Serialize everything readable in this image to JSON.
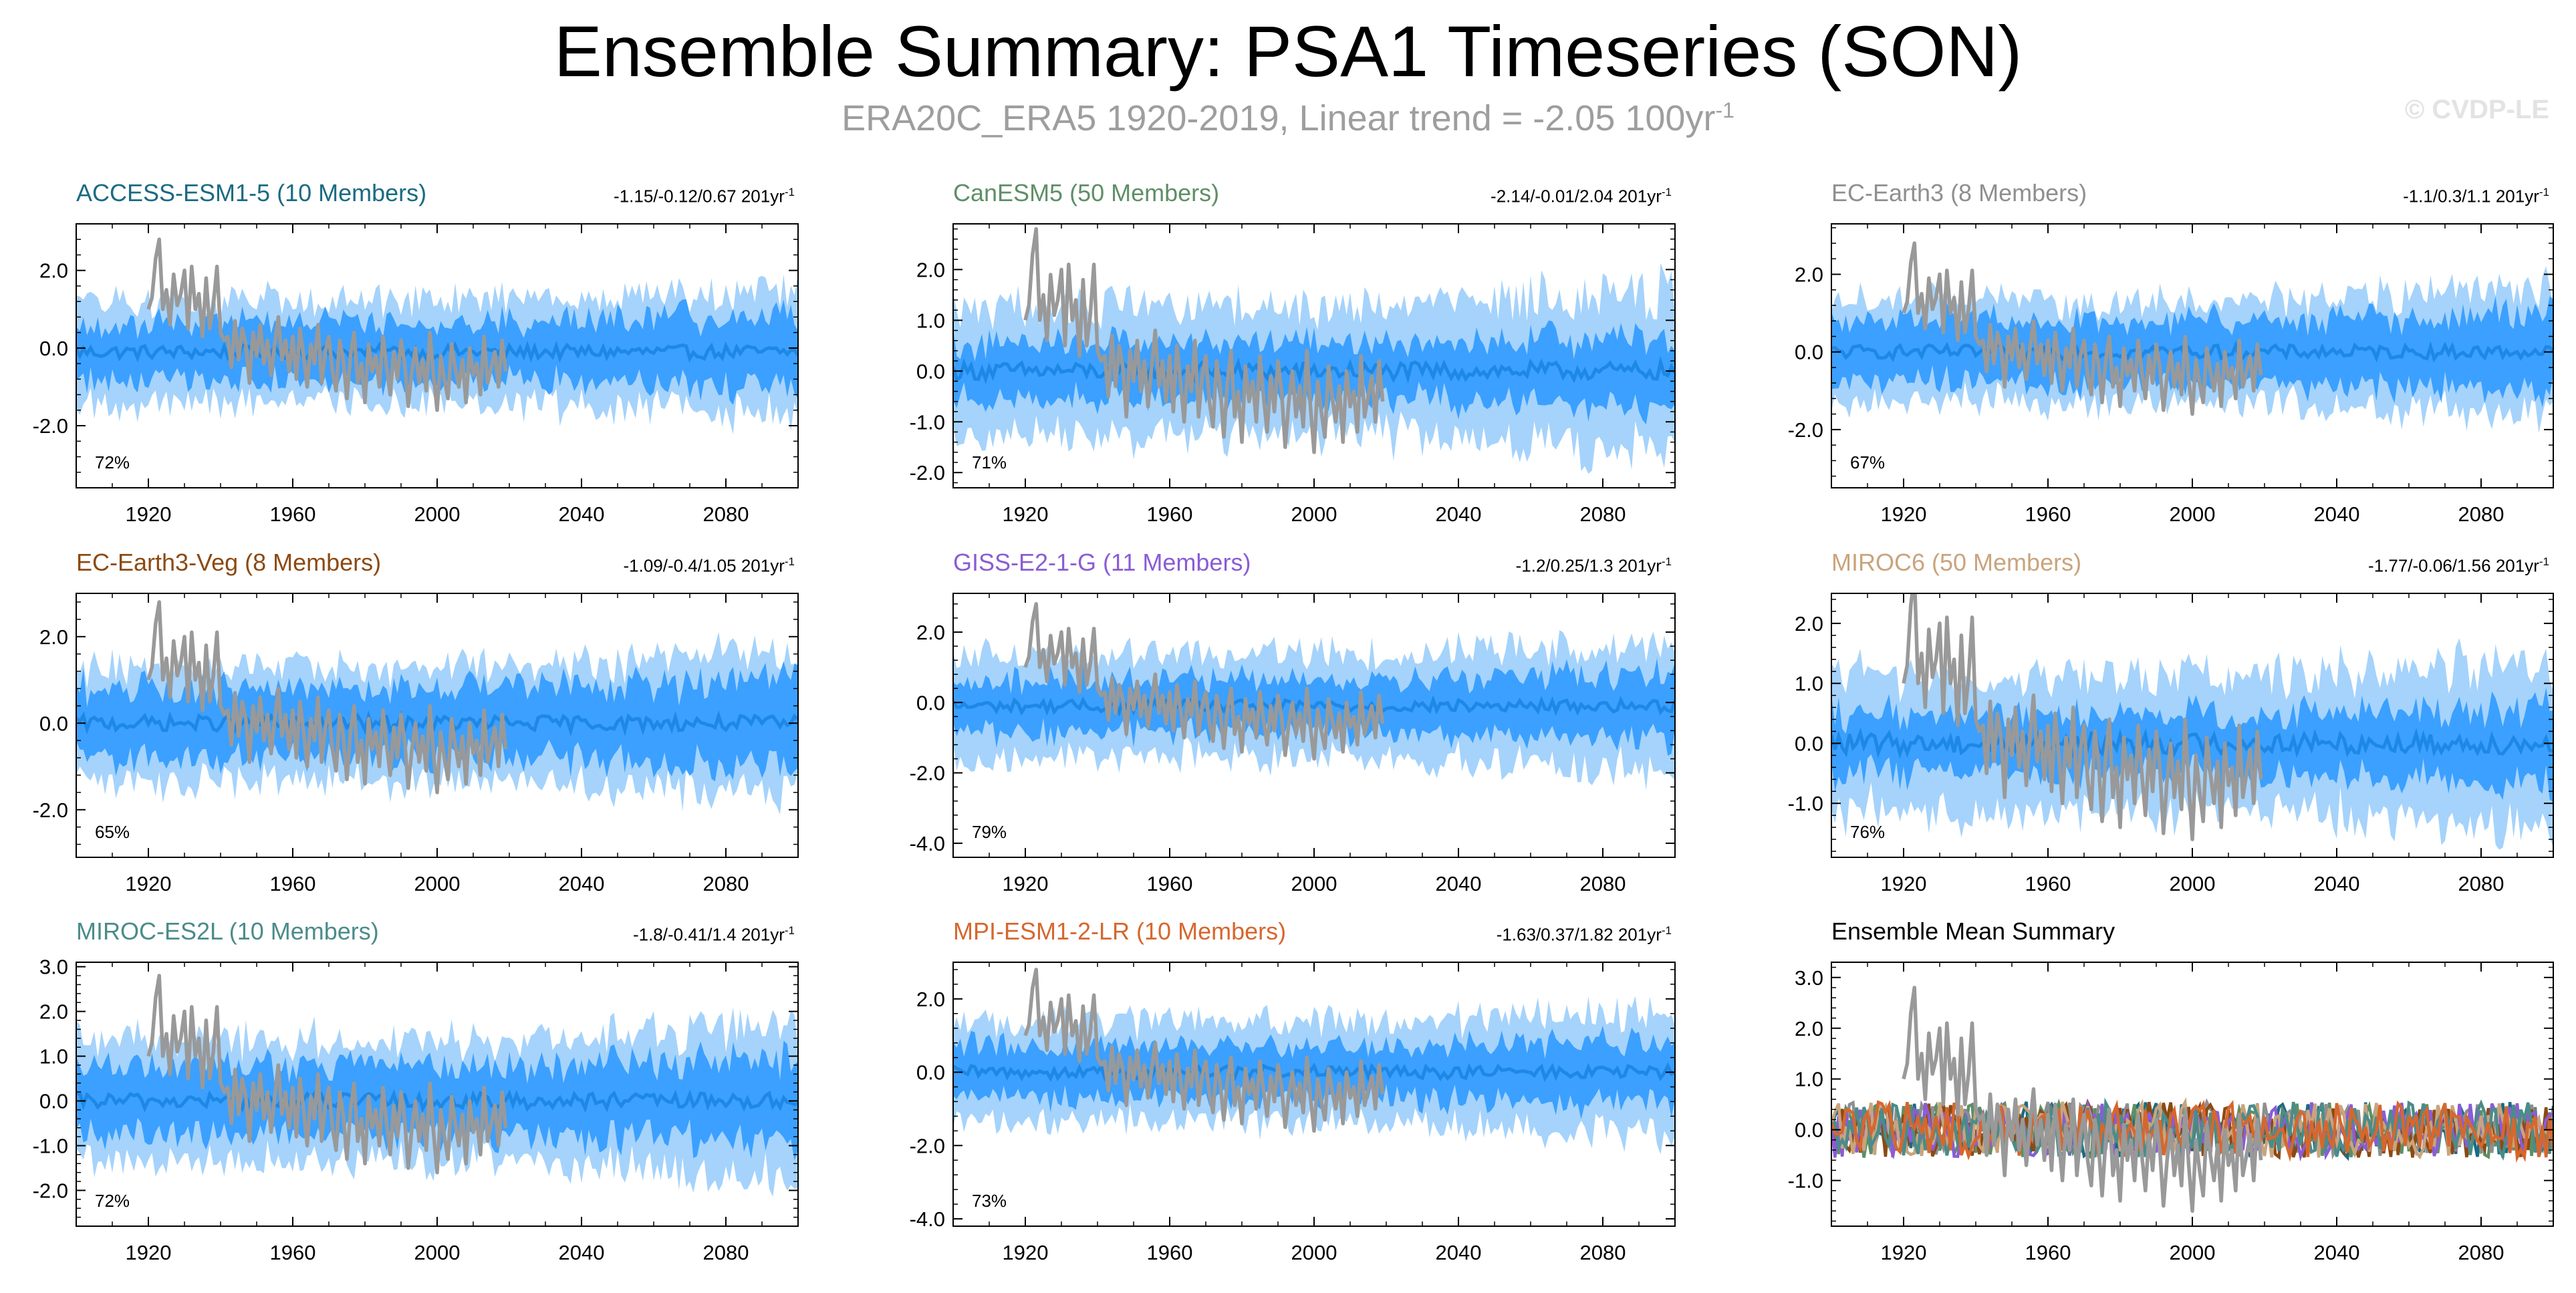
{
  "title": "Ensemble Summary: PSA1 Timeseries (SON)",
  "subtitle_text": "ERA20C_ERA5 1920-2019, Linear trend = -2.05 100yr",
  "subtitle_sup": "-1",
  "copyright": "© CVDP-LE",
  "colors": {
    "observed": "#999999",
    "ens_mean": "#1e88e5",
    "inner_band": "#3ba0ff",
    "outer_band": "#a5d3fb"
  },
  "chart_data": [
    {
      "type": "area",
      "panel_title": "ACCESS-ESM1-5 (10 Members)",
      "title_color": "#1a6b82",
      "trend_text": "-1.15/-0.12/0.67 201yr",
      "trend_sup": "-1",
      "percent": "72%",
      "x_range": [
        1900,
        2100
      ],
      "ylim": [
        -3.6,
        3.2
      ],
      "yticks": [
        "2.0",
        "0.0",
        "-2.0"
      ],
      "ytick_values": [
        2.0,
        0.0,
        -2.0
      ],
      "xticks": [
        "1920",
        "1960",
        "2000",
        "2040",
        "2080"
      ],
      "xtick_values": [
        1920,
        1960,
        2000,
        2040,
        2080
      ],
      "inner_amp": 0.75,
      "outer_amp": 1.25,
      "offset": -0.1
    },
    {
      "type": "area",
      "panel_title": "CanESM5 (50 Members)",
      "title_color": "#5e8f66",
      "trend_text": "-2.14/-0.01/2.04 201yr",
      "trend_sup": "-1",
      "percent": "71%",
      "x_range": [
        1900,
        2100
      ],
      "ylim": [
        -2.3,
        2.9
      ],
      "yticks": [
        "2.0",
        "1.0",
        "0.0",
        "-1.0",
        "-2.0"
      ],
      "ytick_values": [
        2.0,
        1.0,
        0.0,
        -1.0,
        -2.0
      ],
      "xticks": [
        "1920",
        "1960",
        "2000",
        "2040",
        "2080"
      ],
      "xtick_values": [
        1920,
        1960,
        2000,
        2040,
        2080
      ],
      "inner_amp": 0.55,
      "outer_amp": 1.2,
      "offset": 0.0
    },
    {
      "type": "area",
      "panel_title": "EC-Earth3 (8 Members)",
      "title_color": "#8f8f8f",
      "trend_text": "-1.1/0.3/1.1 201yr",
      "trend_sup": "-1",
      "percent": "67%",
      "x_range": [
        1900,
        2100
      ],
      "ylim": [
        -3.5,
        3.3
      ],
      "yticks": [
        "2.0",
        "0.0",
        "-2.0"
      ],
      "ytick_values": [
        2.0,
        0.0,
        -2.0
      ],
      "xticks": [
        "1920",
        "1960",
        "2000",
        "2040",
        "2080"
      ],
      "xtick_values": [
        1920,
        1960,
        2000,
        2040,
        2080
      ],
      "inner_amp": 0.8,
      "outer_amp": 1.25,
      "offset": 0.0
    },
    {
      "type": "area",
      "panel_title": "EC-Earth3-Veg (8 Members)",
      "title_color": "#8c4a12",
      "trend_text": "-1.09/-0.4/1.05 201yr",
      "trend_sup": "-1",
      "percent": "65%",
      "x_range": [
        1900,
        2100
      ],
      "ylim": [
        -3.1,
        3.0
      ],
      "yticks": [
        "2.0",
        "0.0",
        "-2.0"
      ],
      "ytick_values": [
        2.0,
        0.0,
        -2.0
      ],
      "xticks": [
        "1920",
        "1960",
        "2000",
        "2040",
        "2080"
      ],
      "xtick_values": [
        1920,
        1960,
        2000,
        2040,
        2080
      ],
      "inner_amp": 0.8,
      "outer_amp": 1.25,
      "offset": 0.0
    },
    {
      "type": "area",
      "panel_title": "GISS-E2-1-G (11 Members)",
      "title_color": "#8a5cd6",
      "trend_text": "-1.2/0.25/1.3 201yr",
      "trend_sup": "-1",
      "percent": "79%",
      "x_range": [
        1900,
        2100
      ],
      "ylim": [
        -4.4,
        3.1
      ],
      "yticks": [
        "2.0",
        "0.0",
        "-2.0",
        "-4.0"
      ],
      "ytick_values": [
        2.0,
        0.0,
        -2.0,
        -4.0
      ],
      "xticks": [
        "1920",
        "1960",
        "2000",
        "2040",
        "2080"
      ],
      "xtick_values": [
        1920,
        1960,
        2000,
        2040,
        2080
      ],
      "inner_amp": 0.75,
      "outer_amp": 1.4,
      "offset": -0.1
    },
    {
      "type": "area",
      "panel_title": "MIROC6 (50 Members)",
      "title_color": "#c9a47d",
      "trend_text": "-1.77/-0.06/1.56 201yr",
      "trend_sup": "-1",
      "percent": "76%",
      "x_range": [
        1900,
        2100
      ],
      "ylim": [
        -1.9,
        2.5
      ],
      "yticks": [
        "2.0",
        "1.0",
        "0.0",
        "-1.0"
      ],
      "ytick_values": [
        2.0,
        1.0,
        0.0,
        -1.0
      ],
      "xticks": [
        "1920",
        "1960",
        "2000",
        "2040",
        "2080"
      ],
      "xtick_values": [
        1920,
        1960,
        2000,
        2040,
        2080
      ],
      "inner_amp": 0.5,
      "outer_amp": 1.05,
      "offset": 0.0
    },
    {
      "type": "area",
      "panel_title": "MIROC-ES2L (10 Members)",
      "title_color": "#4a8c8a",
      "trend_text": "-1.8/-0.41/1.4 201yr",
      "trend_sup": "-1",
      "percent": "72%",
      "x_range": [
        1900,
        2100
      ],
      "ylim": [
        -2.8,
        3.1
      ],
      "yticks": [
        "3.0",
        "2.0",
        "1.0",
        "0.0",
        "-1.0",
        "-2.0"
      ],
      "ytick_values": [
        3.0,
        2.0,
        1.0,
        0.0,
        -1.0,
        -2.0
      ],
      "xticks": [
        "1920",
        "1960",
        "2000",
        "2040",
        "2080"
      ],
      "xtick_values": [
        1920,
        1960,
        2000,
        2040,
        2080
      ],
      "inner_amp": 0.75,
      "outer_amp": 1.3,
      "offset": 0.0
    },
    {
      "type": "area",
      "panel_title": "MPI-ESM1-2-LR (10 Members)",
      "title_color": "#d6672e",
      "trend_text": "-1.63/0.37/1.82 201yr",
      "trend_sup": "-1",
      "percent": "73%",
      "x_range": [
        1900,
        2100
      ],
      "ylim": [
        -4.2,
        3.0
      ],
      "yticks": [
        "2.0",
        "0.0",
        "-2.0",
        "-4.0"
      ],
      "ytick_values": [
        2.0,
        0.0,
        -2.0,
        -4.0
      ],
      "xticks": [
        "1920",
        "1960",
        "2000",
        "2040",
        "2080"
      ],
      "xtick_values": [
        1920,
        1960,
        2000,
        2040,
        2080
      ],
      "inner_amp": 0.7,
      "outer_amp": 1.3,
      "offset": 0.0
    },
    {
      "type": "line",
      "panel_title": "Ensemble Mean Summary",
      "title_color": "#000000",
      "x_range": [
        1900,
        2100
      ],
      "ylim": [
        -1.9,
        3.3
      ],
      "yticks": [
        "3.0",
        "2.0",
        "1.0",
        "0.0",
        "-1.0"
      ],
      "ytick_values": [
        3.0,
        2.0,
        1.0,
        0.0,
        -1.0
      ],
      "xticks": [
        "1920",
        "1960",
        "2000",
        "2040",
        "2080"
      ],
      "xtick_values": [
        1920,
        1960,
        2000,
        2040,
        2080
      ],
      "series": [
        {
          "name": "ACCESS-ESM1-5",
          "color": "#1a6b82"
        },
        {
          "name": "CanESM5",
          "color": "#5e8f66"
        },
        {
          "name": "EC-Earth3",
          "color": "#8f8f8f"
        },
        {
          "name": "EC-Earth3-Veg",
          "color": "#8c4a12"
        },
        {
          "name": "GISS-E2-1-G",
          "color": "#8a5cd6"
        },
        {
          "name": "MIROC6",
          "color": "#c9a47d"
        },
        {
          "name": "MIROC-ES2L",
          "color": "#4a8c8a"
        },
        {
          "name": "MPI-ESM1-2-LR",
          "color": "#d6672e"
        }
      ]
    }
  ],
  "observed_series": {
    "name": "ERA20C_ERA5",
    "years": [
      1920,
      2019
    ],
    "values": [
      1.0,
      1.3,
      2.3,
      2.8,
      1.0,
      1.5,
      0.6,
      1.9,
      1.1,
      1.4,
      2.0,
      0.5,
      2.1,
      1.0,
      1.4,
      0.3,
      1.8,
      0.5,
      1.1,
      2.1,
      0.4,
      0.2,
      0.3,
      -0.5,
      0.7,
      -0.3,
      0.5,
      0.1,
      -0.9,
      0.4,
      -0.2,
      0.6,
      -0.4,
      0.2,
      -0.7,
      0.1,
      0.8,
      -0.3,
      0.2,
      -0.6,
      0.3,
      -0.8,
      0.5,
      -0.2,
      -1.0,
      0.1,
      -0.4,
      0.6,
      -0.9,
      -0.1,
      0.3,
      -0.6,
      -1.1,
      0.2,
      -0.3,
      -1.3,
      -0.2,
      0.4,
      -0.9,
      -0.4,
      -1.4,
      0.1,
      -0.6,
      -0.2,
      -1.0,
      0.3,
      -0.5,
      -1.2,
      -0.1,
      -0.8,
      0.2,
      -0.4,
      -1.5,
      -0.6,
      0.0,
      -0.9,
      -0.3,
      -1.1,
      0.4,
      -0.7,
      -1.6,
      -0.2,
      -0.8,
      -1.3,
      0.1,
      -0.5,
      -1.0,
      -0.3,
      -1.4,
      0.0,
      -0.7,
      -0.4,
      -1.2,
      0.3,
      -0.9,
      -0.5,
      -0.1,
      -1.0,
      0.2,
      -0.6
    ]
  }
}
